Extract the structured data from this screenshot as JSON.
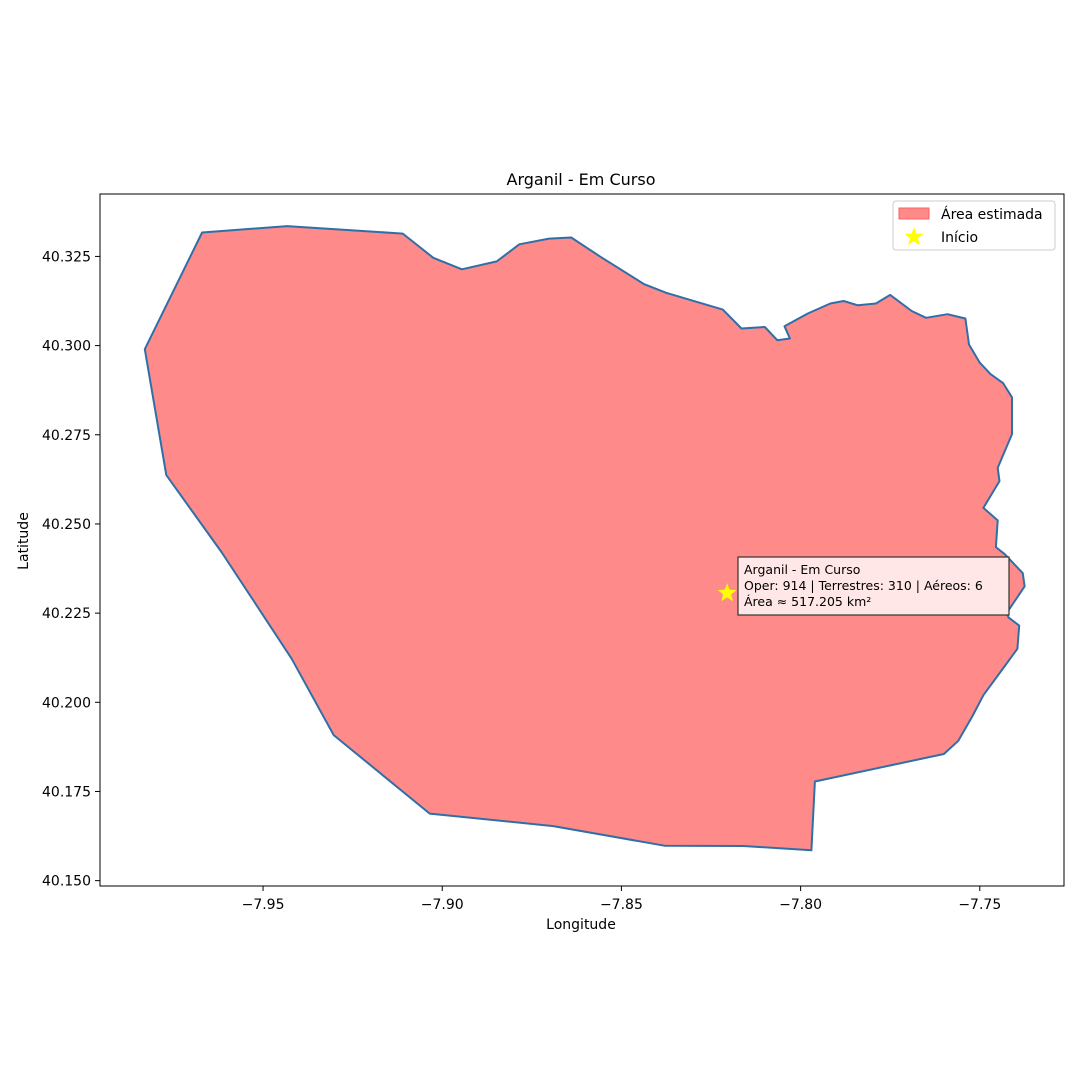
{
  "chart_data": {
    "type": "map",
    "title": "Arganil - Em Curso",
    "xlabel": "Longitude",
    "ylabel": "Latitude",
    "xlim": [
      -7.9955,
      -7.7265
    ],
    "ylim": [
      40.1485,
      40.3425
    ],
    "grid": false,
    "legend_placement": "upper-right",
    "xticks": [
      {
        "value": -7.95,
        "label": "−7.95"
      },
      {
        "value": -7.9,
        "label": "−7.90"
      },
      {
        "value": -7.85,
        "label": "−7.85"
      },
      {
        "value": -7.8,
        "label": "−7.80"
      },
      {
        "value": -7.75,
        "label": "−7.75"
      }
    ],
    "yticks": [
      {
        "value": 40.15,
        "label": "40.150"
      },
      {
        "value": 40.175,
        "label": "40.175"
      },
      {
        "value": 40.2,
        "label": "40.200"
      },
      {
        "value": 40.225,
        "label": "40.225"
      },
      {
        "value": 40.25,
        "label": "40.250"
      },
      {
        "value": 40.275,
        "label": "40.275"
      },
      {
        "value": 40.3,
        "label": "40.300"
      },
      {
        "value": 40.325,
        "label": "40.325"
      }
    ],
    "legend": [
      {
        "label": "Área estimada",
        "kind": "patch",
        "color": "#ff8a8a"
      },
      {
        "label": "Início",
        "kind": "star",
        "color": "#ffff00"
      }
    ],
    "area": {
      "label": "Área estimada",
      "fill_color": "#ff8a8a",
      "edge_color": "#2f6fa8",
      "polygon": [
        [
          -7.967,
          40.3317
        ],
        [
          -7.9433,
          40.3335
        ],
        [
          -7.911,
          40.3314
        ],
        [
          -7.9025,
          40.3246
        ],
        [
          -7.8945,
          40.3214
        ],
        [
          -7.8848,
          40.3236
        ],
        [
          -7.8785,
          40.3284
        ],
        [
          -7.8702,
          40.33
        ],
        [
          -7.864,
          40.3303
        ],
        [
          -7.856,
          40.325
        ],
        [
          -7.8438,
          40.3173
        ],
        [
          -7.8375,
          40.3148
        ],
        [
          -7.8217,
          40.3101
        ],
        [
          -7.8165,
          40.3048
        ],
        [
          -7.81,
          40.3052
        ],
        [
          -7.8065,
          40.3015
        ],
        [
          -7.803,
          40.302
        ],
        [
          -7.8045,
          40.3054
        ],
        [
          -7.798,
          40.309
        ],
        [
          -7.7917,
          40.3118
        ],
        [
          -7.788,
          40.3125
        ],
        [
          -7.784,
          40.3113
        ],
        [
          -7.779,
          40.3118
        ],
        [
          -7.775,
          40.3142
        ],
        [
          -7.769,
          40.3097
        ],
        [
          -7.765,
          40.3078
        ],
        [
          -7.759,
          40.3088
        ],
        [
          -7.754,
          40.3076
        ],
        [
          -7.753,
          40.3003
        ],
        [
          -7.75,
          40.2952
        ],
        [
          -7.747,
          40.292
        ],
        [
          -7.7435,
          40.2895
        ],
        [
          -7.741,
          40.2855
        ],
        [
          -7.741,
          40.2752
        ],
        [
          -7.745,
          40.2657
        ],
        [
          -7.7445,
          40.262
        ],
        [
          -7.749,
          40.2545
        ],
        [
          -7.745,
          40.251
        ],
        [
          -7.7455,
          40.2435
        ],
        [
          -7.743,
          40.2415
        ],
        [
          -7.738,
          40.2362
        ],
        [
          -7.7375,
          40.2325
        ],
        [
          -7.7425,
          40.225
        ],
        [
          -7.742,
          40.2238
        ],
        [
          -7.739,
          40.2215
        ],
        [
          -7.7395,
          40.215
        ],
        [
          -7.743,
          40.2102
        ],
        [
          -7.749,
          40.202
        ],
        [
          -7.752,
          40.1962
        ],
        [
          -7.756,
          40.1892
        ],
        [
          -7.76,
          40.1855
        ],
        [
          -7.796,
          40.1778
        ],
        [
          -7.797,
          40.1585
        ],
        [
          -7.816,
          40.1597
        ],
        [
          -7.838,
          40.1598
        ],
        [
          -7.869,
          40.1653
        ],
        [
          -7.9035,
          40.1688
        ],
        [
          -7.9303,
          40.1908
        ],
        [
          -7.942,
          40.2122
        ],
        [
          -7.9615,
          40.242
        ],
        [
          -7.977,
          40.2637
        ],
        [
          -7.983,
          40.299
        ],
        [
          -7.967,
          40.3317
        ]
      ]
    },
    "start_point": {
      "label": "Início",
      "lon": -7.8205,
      "lat": 40.2306,
      "color": "#ffff00",
      "marker": "star"
    },
    "annotation": {
      "lines": [
        "Arganil - Em Curso",
        "Oper: 914 | Terrestres: 310 | Aéreos: 6",
        "Área ≈ 517.205 km²"
      ],
      "anchor_lon": -7.816,
      "anchor_lat": 40.2412
    }
  }
}
